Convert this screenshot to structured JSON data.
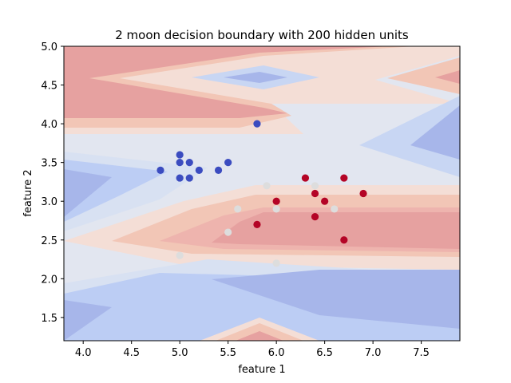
{
  "chart_data": {
    "type": "scatter",
    "title": "2 moon decision boundary with 200 hidden units",
    "xlabel": "feature 1",
    "ylabel": "feature 2",
    "xlim": [
      3.8,
      7.9
    ],
    "ylim": [
      1.2,
      5.0
    ],
    "xticks": [
      "4.0",
      "4.5",
      "5.0",
      "5.5",
      "6.0",
      "6.5",
      "7.0",
      "7.5"
    ],
    "xtick_values": [
      4.0,
      4.5,
      5.0,
      5.5,
      6.0,
      6.5,
      7.0,
      7.5
    ],
    "yticks": [
      "1.5",
      "2.0",
      "2.5",
      "3.0",
      "3.5",
      "4.0",
      "4.5",
      "5.0"
    ],
    "ytick_values": [
      1.5,
      2.0,
      2.5,
      3.0,
      3.5,
      4.0,
      4.5,
      5.0
    ],
    "grid": false,
    "colormap": "coolwarm",
    "series": [
      {
        "color": "#3b4cc0",
        "points": [
          [
            5.8,
            4.0
          ],
          [
            5.0,
            3.6
          ],
          [
            5.0,
            3.5
          ],
          [
            5.1,
            3.5
          ],
          [
            5.5,
            3.5
          ],
          [
            4.8,
            3.4
          ],
          [
            5.2,
            3.4
          ],
          [
            5.4,
            3.4
          ],
          [
            5.0,
            3.3
          ],
          [
            5.1,
            3.3
          ]
        ]
      },
      {
        "color": "#b40426",
        "points": [
          [
            6.3,
            3.3
          ],
          [
            6.7,
            3.3
          ],
          [
            6.4,
            3.1
          ],
          [
            6.9,
            3.1
          ],
          [
            6.0,
            3.0
          ],
          [
            6.5,
            3.0
          ],
          [
            6.4,
            2.8
          ],
          [
            5.8,
            2.7
          ],
          [
            6.7,
            2.5
          ]
        ]
      },
      {
        "color": "#dddddd",
        "points": [
          [
            5.9,
            3.2
          ],
          [
            6.4,
            3.2
          ],
          [
            5.6,
            2.9
          ],
          [
            6.0,
            2.9
          ],
          [
            6.6,
            2.9
          ],
          [
            5.5,
            2.6
          ],
          [
            5.0,
            2.3
          ],
          [
            6.0,
            2.2
          ]
        ]
      }
    ]
  }
}
